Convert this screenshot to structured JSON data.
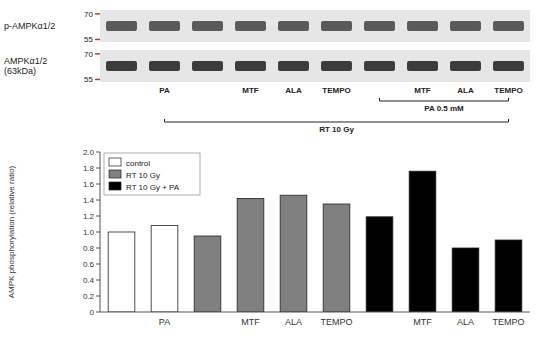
{
  "chart_data": {
    "type": "bar",
    "categories": [
      null,
      "PA",
      null,
      "MTF",
      "ALA",
      "TEMPO",
      null,
      "MTF",
      "ALA",
      "TEMPO"
    ],
    "series": [
      {
        "name": "control",
        "color": "white",
        "values": [
          1.0,
          1.08,
          null,
          null,
          null,
          null,
          null,
          null,
          null,
          null
        ]
      },
      {
        "name": "RT 10 Gy",
        "color": "#808080",
        "values": [
          null,
          null,
          0.95,
          1.42,
          1.46,
          1.35,
          null,
          null,
          null,
          null
        ]
      },
      {
        "name": "RT 10 Gy + PA",
        "color": "black",
        "values": [
          null,
          null,
          null,
          null,
          null,
          null,
          1.19,
          1.76,
          0.8,
          0.9
        ]
      }
    ],
    "ylabel": "AMPK phosphorylation (relative ratio)",
    "ylim": [
      0,
      2.0
    ],
    "yticks": [
      0,
      0.2,
      0.4,
      0.6,
      0.8,
      {
        "value": 1.0,
        "label": "1.0"
      },
      1.2,
      1.4,
      1.6,
      1.8,
      {
        "value": 2.0,
        "label": "2.0"
      }
    ],
    "grid": false,
    "legend": "upper left",
    "annotations": [
      {
        "text": "PA 0.5 mM",
        "from": 6,
        "to": 9
      },
      {
        "text": "RT 10 Gy",
        "from": 1,
        "to": 9
      }
    ],
    "blot": {
      "rows": [
        "p-AMPKα1/2",
        "AMPKα1/2\n(63kDa)"
      ],
      "markers": [
        70,
        55
      ]
    }
  }
}
